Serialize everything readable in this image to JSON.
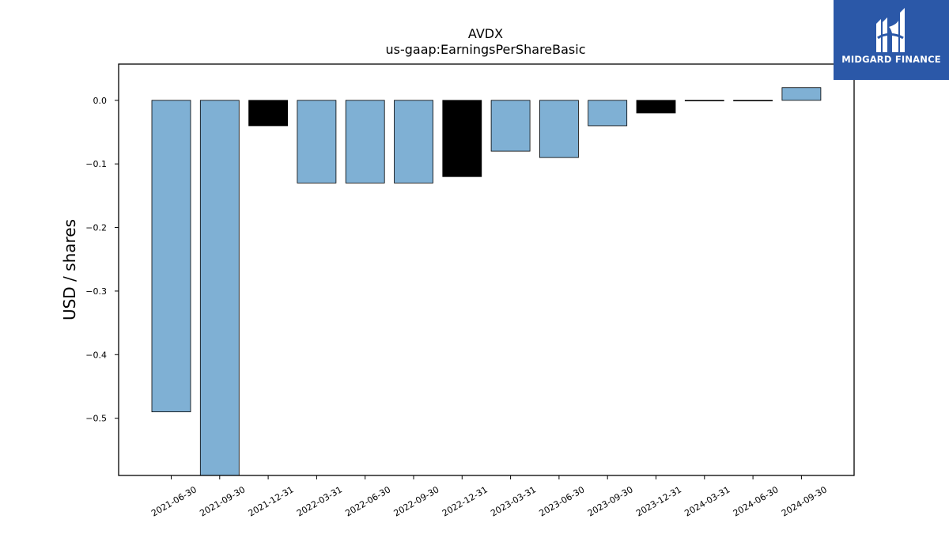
{
  "chart_data": {
    "type": "bar",
    "title": "AVDX",
    "subtitle": "us-gaap:EarningsPerShareBasic",
    "xlabel": "",
    "ylabel": "USD / shares",
    "categories": [
      "2021-06-30",
      "2021-09-30",
      "2021-12-31",
      "2022-03-31",
      "2022-06-30",
      "2022-09-30",
      "2022-12-31",
      "2023-03-31",
      "2023-06-30",
      "2023-09-30",
      "2023-12-31",
      "2024-03-31",
      "2024-06-30",
      "2024-09-30"
    ],
    "values": [
      -0.49,
      -0.59,
      -0.04,
      -0.13,
      -0.13,
      -0.13,
      -0.12,
      -0.08,
      -0.09,
      -0.04,
      -0.02,
      0.0,
      0.0,
      0.02
    ],
    "bar_colors": [
      "#7fb0d4",
      "#7fb0d4",
      "#000000",
      "#7fb0d4",
      "#7fb0d4",
      "#7fb0d4",
      "#000000",
      "#7fb0d4",
      "#7fb0d4",
      "#7fb0d4",
      "#000000",
      "#000000",
      "#000000",
      "#7fb0d4"
    ],
    "ylim": [
      -0.59,
      0.057
    ],
    "yticks": [
      0.0,
      -0.1,
      -0.2,
      -0.3,
      -0.4,
      -0.5
    ],
    "ytick_labels": [
      "0.0",
      "−0.1",
      "−0.2",
      "−0.3",
      "−0.4",
      "−0.5"
    ],
    "grid": false,
    "legend": "none"
  },
  "brand": {
    "name": "MIDGARD FINANCE",
    "bg_color": "#2b58a8",
    "icon": "midgard-logo-mark"
  }
}
